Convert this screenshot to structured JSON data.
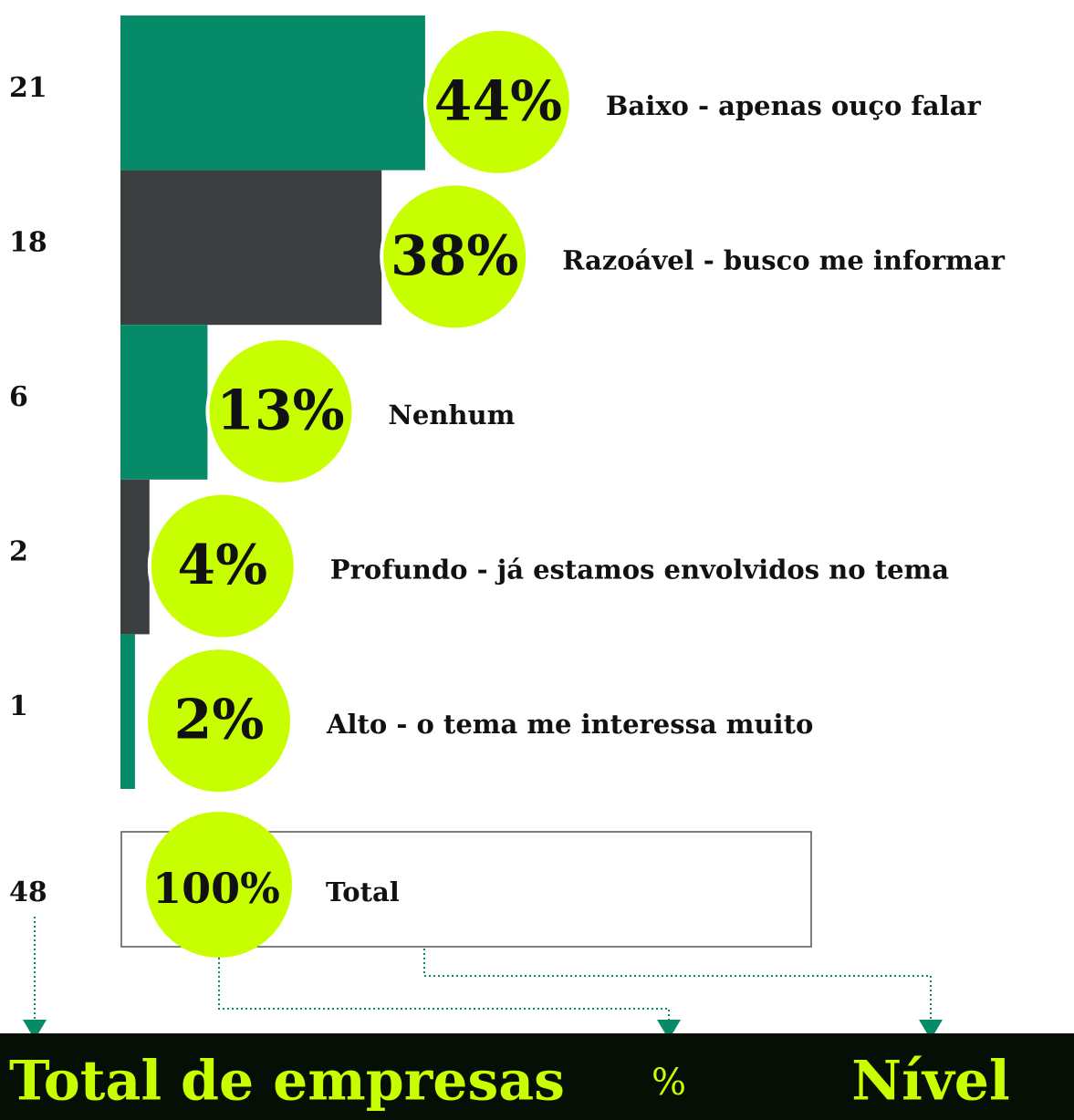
{
  "chart_data": {
    "type": "bar",
    "orientation": "horizontal",
    "categories": [
      "Baixo - apenas ouço falar",
      "Razoável - busco me informar",
      "Nenhum",
      "Profundo - já estamos envolvidos no tema",
      "Alto - o tema me interessa muito"
    ],
    "values": [
      21,
      18,
      6,
      2,
      1
    ],
    "percent_labels": [
      "44%",
      "38%",
      "13%",
      "4%",
      "2%"
    ],
    "colors": [
      "#078a68",
      "#3b3f40",
      "#078a68",
      "#3b3f40",
      "#078a68"
    ],
    "badge_color": "#c8ff00",
    "total": {
      "value": 48,
      "percent_label": "100%",
      "label": "Total"
    },
    "footer": [
      "Total de empresas",
      "%",
      "Nível"
    ]
  }
}
